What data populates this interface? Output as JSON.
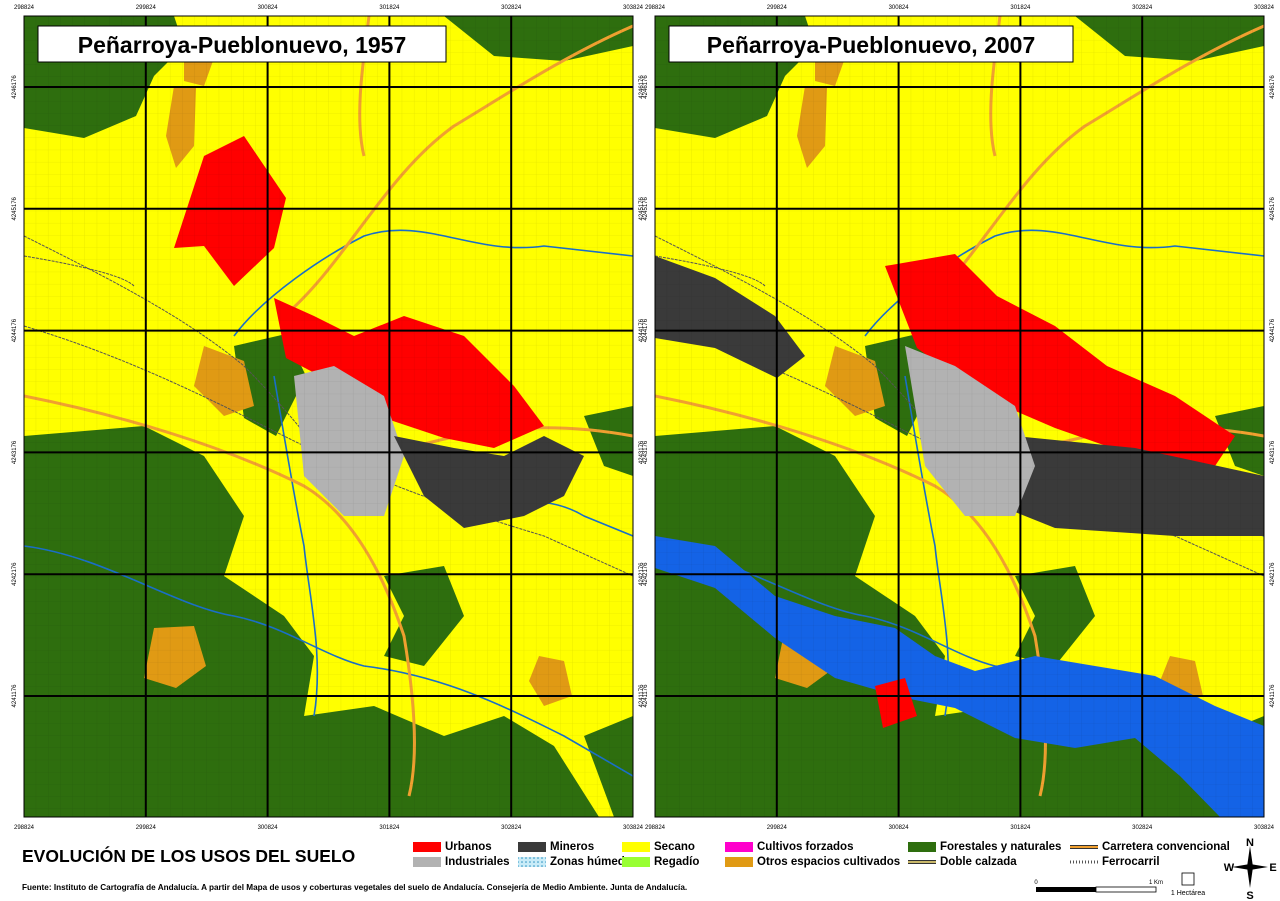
{
  "maps": [
    {
      "title": "Peñarroya-Pueblonuevo, 1957"
    },
    {
      "title": "Peñarroya-Pueblonuevo, 2007"
    }
  ],
  "x_labels": [
    "298824",
    "299824",
    "300824",
    "301824",
    "302824",
    "303824"
  ],
  "y_labels": [
    "4246176",
    "4245176",
    "4244176",
    "4243176",
    "4242176",
    "4241176"
  ],
  "legend_title": "EVOLUCIÓN DE LOS USOS DEL SUELO",
  "legend": [
    {
      "label": "Urbanos",
      "color": "#ff0000",
      "style": "fill"
    },
    {
      "label": "Industriales",
      "color": "#b2b2b2",
      "style": "fill"
    },
    {
      "label": "Mineros",
      "color": "#3a3a3a",
      "style": "fill"
    },
    {
      "label": "Zonas húmedas",
      "color": "#9fd8ef",
      "style": "hatch"
    },
    {
      "label": "Secano",
      "color": "#ffff00",
      "style": "fill"
    },
    {
      "label": "Regadío",
      "color": "#99ff33",
      "style": "fill"
    },
    {
      "label": "Cultivos forzados",
      "color": "#ff00cc",
      "style": "fill"
    },
    {
      "label": "Otros espacios cultivados",
      "color": "#e09a14",
      "style": "fill"
    },
    {
      "label": "Forestales y naturales",
      "color": "#2e6e0e",
      "style": "fill"
    },
    {
      "label": "Doble calzada",
      "color": "#c9b86a",
      "style": "line"
    },
    {
      "label": "Carretera convencional",
      "color": "#f0a030",
      "style": "line"
    },
    {
      "label": "Ferrocarril",
      "color": "#555555",
      "style": "rail"
    }
  ],
  "source": "Fuente: Instituto de Cartografía de Andalucía. A partir del Mapa de usos y coberturas vegetales del suelo de Andalucía. Consejería de Medio Ambiente. Junta de Andalucía.",
  "scale": {
    "start": "0",
    "end": "1 Km",
    "area": "1 Hectárea"
  },
  "compass": {
    "n": "N",
    "e": "E",
    "s": "S",
    "w": "W"
  }
}
